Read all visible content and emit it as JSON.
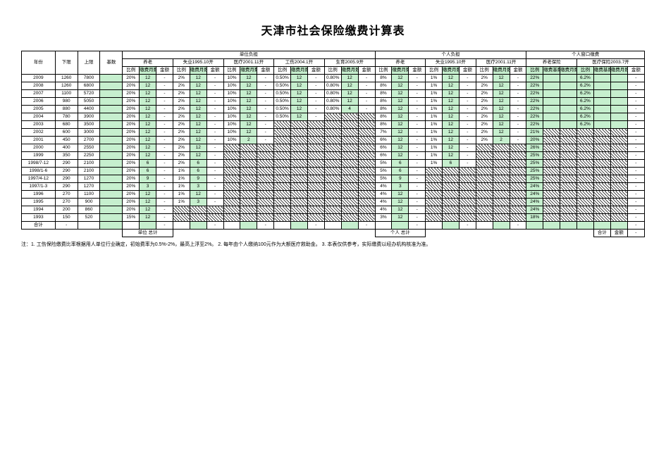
{
  "title": "天津市社会保险缴费计算表",
  "group_headers": {
    "unit": "单位负担",
    "personal": "个人负担",
    "window": "个人窗口缴费"
  },
  "sub_headers": {
    "yanglao_u": "养老",
    "shiye_u": "失业1995.10开",
    "yiliao_u": "医疗2001.11开",
    "gongshang": "工伤2004.1开",
    "shengyu": "生育2005.9开",
    "yanglao_p": "养老",
    "shiye_p": "失业1995.10开",
    "yiliao_p": "医疗2001.11开",
    "yanglao_w": "养老保险",
    "yiliao_w": "医疗保险2003.7开"
  },
  "col_labels": {
    "year": "年份",
    "lower": "下限",
    "upper": "上限",
    "base": "基数",
    "ratio": "比例",
    "months": "缴费月数",
    "amount": "金额",
    "acct_ratio": "缴费基数",
    "acct_months": "缴费月数"
  },
  "totals": {
    "sum_label": "合计",
    "unit_total_label": "单位 总计",
    "personal_total_label": "个人 总计",
    "right_sum_label": "合计",
    "right_amount_label": "金额"
  },
  "footnote": "注：1. 工伤保险缴费比率根据用人单位行业确定，初始费率为0.5%-2%，最高上浮至2%。  2. 每年由个人缴纳100元作为大额医疗救助金。  3. 本表仅供参考，实际缴费以经办机构核准为准。",
  "colors": {
    "highlight": "#c6efce",
    "border": "#000000",
    "hatch": "#000000"
  },
  "rows": [
    {
      "year": "2009",
      "lower": "1260",
      "upper": "7800",
      "base": "",
      "u": [
        [
          "20%",
          "12",
          "-"
        ],
        [
          "2%",
          "12",
          "-"
        ],
        [
          "10%",
          "12",
          "-"
        ],
        [
          "0.50%",
          "12",
          "-"
        ],
        [
          "0.80%",
          "12",
          "-"
        ]
      ],
      "p": [
        [
          "8%",
          "12",
          "-"
        ],
        [
          "1%",
          "12",
          "-"
        ],
        [
          "2%",
          "12",
          "-"
        ]
      ],
      "w": [
        [
          "22%",
          "",
          "",
          "6.2%",
          "",
          "",
          "-"
        ]
      ]
    },
    {
      "year": "2008",
      "lower": "1260",
      "upper": "6800",
      "base": "",
      "u": [
        [
          "20%",
          "12",
          "-"
        ],
        [
          "2%",
          "12",
          "-"
        ],
        [
          "10%",
          "12",
          "-"
        ],
        [
          "0.50%",
          "12",
          "-"
        ],
        [
          "0.80%",
          "12",
          "-"
        ]
      ],
      "p": [
        [
          "8%",
          "12",
          "-"
        ],
        [
          "1%",
          "12",
          "-"
        ],
        [
          "2%",
          "12",
          "-"
        ]
      ],
      "w": [
        [
          "22%",
          "",
          "",
          "6.2%",
          "",
          "",
          "-"
        ]
      ]
    },
    {
      "year": "2007",
      "lower": "1100",
      "upper": "5720",
      "base": "",
      "u": [
        [
          "20%",
          "12",
          "-"
        ],
        [
          "2%",
          "12",
          "-"
        ],
        [
          "10%",
          "12",
          "-"
        ],
        [
          "0.50%",
          "12",
          "-"
        ],
        [
          "0.80%",
          "12",
          "-"
        ]
      ],
      "p": [
        [
          "8%",
          "12",
          "-"
        ],
        [
          "1%",
          "12",
          "-"
        ],
        [
          "2%",
          "12",
          "-"
        ]
      ],
      "w": [
        [
          "22%",
          "",
          "",
          "6.2%",
          "",
          "",
          "-"
        ]
      ]
    },
    {
      "year": "2006",
      "lower": "980",
      "upper": "5050",
      "base": "",
      "u": [
        [
          "20%",
          "12",
          "-"
        ],
        [
          "2%",
          "12",
          "-"
        ],
        [
          "10%",
          "12",
          "-"
        ],
        [
          "0.50%",
          "12",
          "-"
        ],
        [
          "0.80%",
          "12",
          "-"
        ]
      ],
      "p": [
        [
          "8%",
          "12",
          "-"
        ],
        [
          "1%",
          "12",
          "-"
        ],
        [
          "2%",
          "12",
          "-"
        ]
      ],
      "w": [
        [
          "22%",
          "",
          "",
          "6.2%",
          "",
          "",
          "-"
        ]
      ]
    },
    {
      "year": "2005",
      "lower": "880",
      "upper": "4400",
      "base": "",
      "u": [
        [
          "20%",
          "12",
          "-"
        ],
        [
          "2%",
          "12",
          "-"
        ],
        [
          "10%",
          "12",
          "-"
        ],
        [
          "0.50%",
          "12",
          "-"
        ],
        [
          "0.80%",
          "4",
          "-"
        ]
      ],
      "p": [
        [
          "8%",
          "12",
          "-"
        ],
        [
          "1%",
          "12",
          "-"
        ],
        [
          "2%",
          "12",
          "-"
        ]
      ],
      "w": [
        [
          "22%",
          "",
          "",
          "6.2%",
          "",
          "",
          "-"
        ]
      ]
    },
    {
      "year": "2004",
      "lower": "780",
      "upper": "3900",
      "base": "",
      "u": [
        [
          "20%",
          "12",
          "-"
        ],
        [
          "2%",
          "12",
          "-"
        ],
        [
          "10%",
          "12",
          "-"
        ],
        [
          "0.50%",
          "12",
          "-"
        ],
        [
          "H",
          "H",
          "H"
        ]
      ],
      "p": [
        [
          "8%",
          "12",
          "-"
        ],
        [
          "1%",
          "12",
          "-"
        ],
        [
          "2%",
          "12",
          "-"
        ]
      ],
      "w": [
        [
          "22%",
          "",
          "",
          "6.2%",
          "",
          "",
          "-"
        ]
      ]
    },
    {
      "year": "2003",
      "lower": "680",
      "upper": "3500",
      "base": "",
      "u": [
        [
          "20%",
          "12",
          "-"
        ],
        [
          "2%",
          "12",
          "-"
        ],
        [
          "10%",
          "12",
          "-"
        ],
        [
          "H",
          "H",
          "H"
        ],
        [
          "H",
          "H",
          "H"
        ]
      ],
      "p": [
        [
          "8%",
          "12",
          "-"
        ],
        [
          "1%",
          "12",
          "-"
        ],
        [
          "2%",
          "12",
          "-"
        ]
      ],
      "w": [
        [
          "22%",
          "",
          "",
          "6.2%",
          "",
          "",
          "-"
        ]
      ]
    },
    {
      "year": "2002",
      "lower": "600",
      "upper": "3000",
      "base": "",
      "u": [
        [
          "20%",
          "12",
          "-"
        ],
        [
          "2%",
          "12",
          "-"
        ],
        [
          "10%",
          "12",
          "-"
        ],
        [
          "H",
          "H",
          "H"
        ],
        [
          "H",
          "H",
          "H"
        ]
      ],
      "p": [
        [
          "7%",
          "12",
          "-"
        ],
        [
          "1%",
          "12",
          "-"
        ],
        [
          "2%",
          "12",
          "-"
        ]
      ],
      "w": [
        [
          "21%",
          "H",
          "H",
          "H",
          "H",
          "H",
          "-"
        ]
      ]
    },
    {
      "year": "2001",
      "lower": "450",
      "upper": "2700",
      "base": "",
      "u": [
        [
          "20%",
          "12",
          "-"
        ],
        [
          "2%",
          "12",
          "-"
        ],
        [
          "10%",
          "2",
          "-"
        ],
        [
          "H",
          "H",
          "H"
        ],
        [
          "H",
          "H",
          "H"
        ]
      ],
      "p": [
        [
          "6%",
          "12",
          "-"
        ],
        [
          "1%",
          "12",
          "-"
        ],
        [
          "2%",
          "2",
          "-"
        ]
      ],
      "w": [
        [
          "20%",
          "H",
          "H",
          "H",
          "H",
          "H",
          "-"
        ]
      ]
    },
    {
      "year": "2000",
      "lower": "400",
      "upper": "2550",
      "base": "",
      "u": [
        [
          "20%",
          "12",
          "-"
        ],
        [
          "2%",
          "12",
          "-"
        ],
        [
          "H",
          "H",
          "H"
        ],
        [
          "H",
          "H",
          "H"
        ],
        [
          "H",
          "H",
          "H"
        ]
      ],
      "p": [
        [
          "6%",
          "12",
          "-"
        ],
        [
          "1%",
          "12",
          "-"
        ],
        [
          "H",
          "H",
          "H"
        ]
      ],
      "w": [
        [
          "26%",
          "H",
          "H",
          "H",
          "H",
          "H",
          "-"
        ]
      ]
    },
    {
      "year": "1999",
      "lower": "350",
      "upper": "2250",
      "base": "",
      "u": [
        [
          "20%",
          "12",
          "-"
        ],
        [
          "2%",
          "12",
          "-"
        ],
        [
          "H",
          "H",
          "H"
        ],
        [
          "H",
          "H",
          "H"
        ],
        [
          "H",
          "H",
          "H"
        ]
      ],
      "p": [
        [
          "6%",
          "12",
          "-"
        ],
        [
          "1%",
          "12",
          "-"
        ],
        [
          "H",
          "H",
          "H"
        ]
      ],
      "w": [
        [
          "25%",
          "H",
          "H",
          "H",
          "H",
          "H",
          "-"
        ]
      ]
    },
    {
      "year": "1998/7-12",
      "lower": "290",
      "upper": "2100",
      "base": "",
      "u": [
        [
          "20%",
          "6",
          "-"
        ],
        [
          "2%",
          "6",
          "-"
        ],
        [
          "H",
          "H",
          "H"
        ],
        [
          "H",
          "H",
          "H"
        ],
        [
          "H",
          "H",
          "H"
        ]
      ],
      "p": [
        [
          "5%",
          "6",
          "-"
        ],
        [
          "1%",
          "6",
          "-"
        ],
        [
          "H",
          "H",
          "H"
        ]
      ],
      "w": [
        [
          "25%",
          "H",
          "H",
          "H",
          "H",
          "H",
          "-"
        ]
      ]
    },
    {
      "year": "1998/1-6",
      "lower": "290",
      "upper": "2100",
      "base": "",
      "u": [
        [
          "20%",
          "6",
          "-"
        ],
        [
          "1%",
          "6",
          "-"
        ],
        [
          "H",
          "H",
          "H"
        ],
        [
          "H",
          "H",
          "H"
        ],
        [
          "H",
          "H",
          "H"
        ]
      ],
      "p": [
        [
          "5%",
          "6",
          "-"
        ],
        [
          "H",
          "H",
          "H"
        ],
        [
          "H",
          "H",
          "H"
        ]
      ],
      "w": [
        [
          "25%",
          "H",
          "H",
          "H",
          "H",
          "H",
          "-"
        ]
      ]
    },
    {
      "year": "1997/4-12",
      "lower": "290",
      "upper": "1270",
      "base": "",
      "u": [
        [
          "20%",
          "9",
          "-"
        ],
        [
          "1%",
          "9",
          "-"
        ],
        [
          "H",
          "H",
          "H"
        ],
        [
          "H",
          "H",
          "H"
        ],
        [
          "H",
          "H",
          "H"
        ]
      ],
      "p": [
        [
          "5%",
          "9",
          "-"
        ],
        [
          "H",
          "H",
          "H"
        ],
        [
          "H",
          "H",
          "H"
        ]
      ],
      "w": [
        [
          "25%",
          "H",
          "H",
          "H",
          "H",
          "H",
          "-"
        ]
      ]
    },
    {
      "year": "1997/1-3",
      "lower": "290",
      "upper": "1270",
      "base": "",
      "u": [
        [
          "20%",
          "3",
          "-"
        ],
        [
          "1%",
          "3",
          "-"
        ],
        [
          "H",
          "H",
          "H"
        ],
        [
          "H",
          "H",
          "H"
        ],
        [
          "H",
          "H",
          "H"
        ]
      ],
      "p": [
        [
          "4%",
          "3",
          "-"
        ],
        [
          "H",
          "H",
          "H"
        ],
        [
          "H",
          "H",
          "H"
        ]
      ],
      "w": [
        [
          "24%",
          "H",
          "H",
          "H",
          "H",
          "H",
          "-"
        ]
      ]
    },
    {
      "year": "1996",
      "lower": "270",
      "upper": "1100",
      "base": "",
      "u": [
        [
          "20%",
          "12",
          "-"
        ],
        [
          "1%",
          "12",
          "-"
        ],
        [
          "H",
          "H",
          "H"
        ],
        [
          "H",
          "H",
          "H"
        ],
        [
          "H",
          "H",
          "H"
        ]
      ],
      "p": [
        [
          "4%",
          "12",
          "-"
        ],
        [
          "H",
          "H",
          "H"
        ],
        [
          "H",
          "H",
          "H"
        ]
      ],
      "w": [
        [
          "24%",
          "H",
          "H",
          "H",
          "H",
          "H",
          "-"
        ]
      ]
    },
    {
      "year": "1995",
      "lower": "270",
      "upper": "900",
      "base": "",
      "u": [
        [
          "20%",
          "12",
          "-"
        ],
        [
          "1%",
          "3",
          "-"
        ],
        [
          "H",
          "H",
          "H"
        ],
        [
          "H",
          "H",
          "H"
        ],
        [
          "H",
          "H",
          "H"
        ]
      ],
      "p": [
        [
          "4%",
          "12",
          "-"
        ],
        [
          "H",
          "H",
          "H"
        ],
        [
          "H",
          "H",
          "H"
        ]
      ],
      "w": [
        [
          "24%",
          "H",
          "H",
          "H",
          "H",
          "H",
          "-"
        ]
      ]
    },
    {
      "year": "1994",
      "lower": "200",
      "upper": "860",
      "base": "",
      "u": [
        [
          "20%",
          "12",
          "-"
        ],
        [
          "H",
          "H",
          "H"
        ],
        [
          "H",
          "H",
          "H"
        ],
        [
          "H",
          "H",
          "H"
        ],
        [
          "H",
          "H",
          "H"
        ]
      ],
      "p": [
        [
          "4%",
          "12",
          "-"
        ],
        [
          "H",
          "H",
          "H"
        ],
        [
          "H",
          "H",
          "H"
        ]
      ],
      "w": [
        [
          "24%",
          "H",
          "H",
          "H",
          "H",
          "H",
          "-"
        ]
      ]
    },
    {
      "year": "1993",
      "lower": "150",
      "upper": "520",
      "base": "",
      "u": [
        [
          "15%",
          "12",
          "-"
        ],
        [
          "H",
          "H",
          "H"
        ],
        [
          "H",
          "H",
          "H"
        ],
        [
          "H",
          "H",
          "H"
        ],
        [
          "H",
          "H",
          "H"
        ]
      ],
      "p": [
        [
          "3%",
          "12",
          "-"
        ],
        [
          "H",
          "H",
          "H"
        ],
        [
          "H",
          "H",
          "H"
        ]
      ],
      "w": [
        [
          "18%",
          "H",
          "H",
          "H",
          "H",
          "H",
          "-"
        ]
      ]
    }
  ]
}
